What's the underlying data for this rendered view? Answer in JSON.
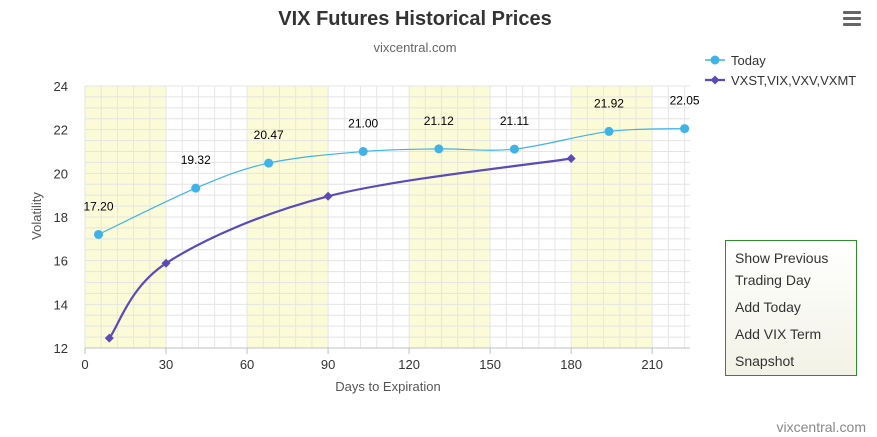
{
  "chart_data": {
    "type": "line",
    "title": "VIX Futures Historical Prices",
    "subtitle": "vixcentral.com",
    "xlabel": "Days to Expiration",
    "ylabel": "Volatility",
    "xlim": [
      0,
      224
    ],
    "ylim": [
      12,
      24
    ],
    "x_ticks": [
      0,
      30,
      60,
      90,
      120,
      150,
      180,
      210
    ],
    "y_ticks": [
      12,
      14,
      16,
      18,
      20,
      22,
      24
    ],
    "legend_position": "top-right",
    "series": [
      {
        "name": "Today",
        "color": "#3fb3e8",
        "marker": "circle",
        "x": [
          5,
          41,
          68,
          103,
          131,
          159,
          194,
          222
        ],
        "y": [
          17.2,
          19.32,
          20.47,
          21.0,
          21.12,
          21.11,
          21.92,
          22.05
        ],
        "labels": [
          "17.20",
          "19.32",
          "20.47",
          "21.00",
          "21.12",
          "21.11",
          "21.92",
          "22.05"
        ]
      },
      {
        "name": "VXST,VIX,VXV,VXMT",
        "color": "#5a4bb8",
        "marker": "diamond",
        "x": [
          9,
          30,
          90,
          180
        ],
        "y": [
          12.45,
          15.88,
          18.95,
          20.68
        ]
      }
    ],
    "credits": "vixcentral.com"
  },
  "menu": {
    "icon": "hamburger-menu-icon",
    "items": [
      "Show Previous",
      "Trading Day",
      "Add Today",
      "Add VIX Term",
      "Snapshot"
    ]
  }
}
